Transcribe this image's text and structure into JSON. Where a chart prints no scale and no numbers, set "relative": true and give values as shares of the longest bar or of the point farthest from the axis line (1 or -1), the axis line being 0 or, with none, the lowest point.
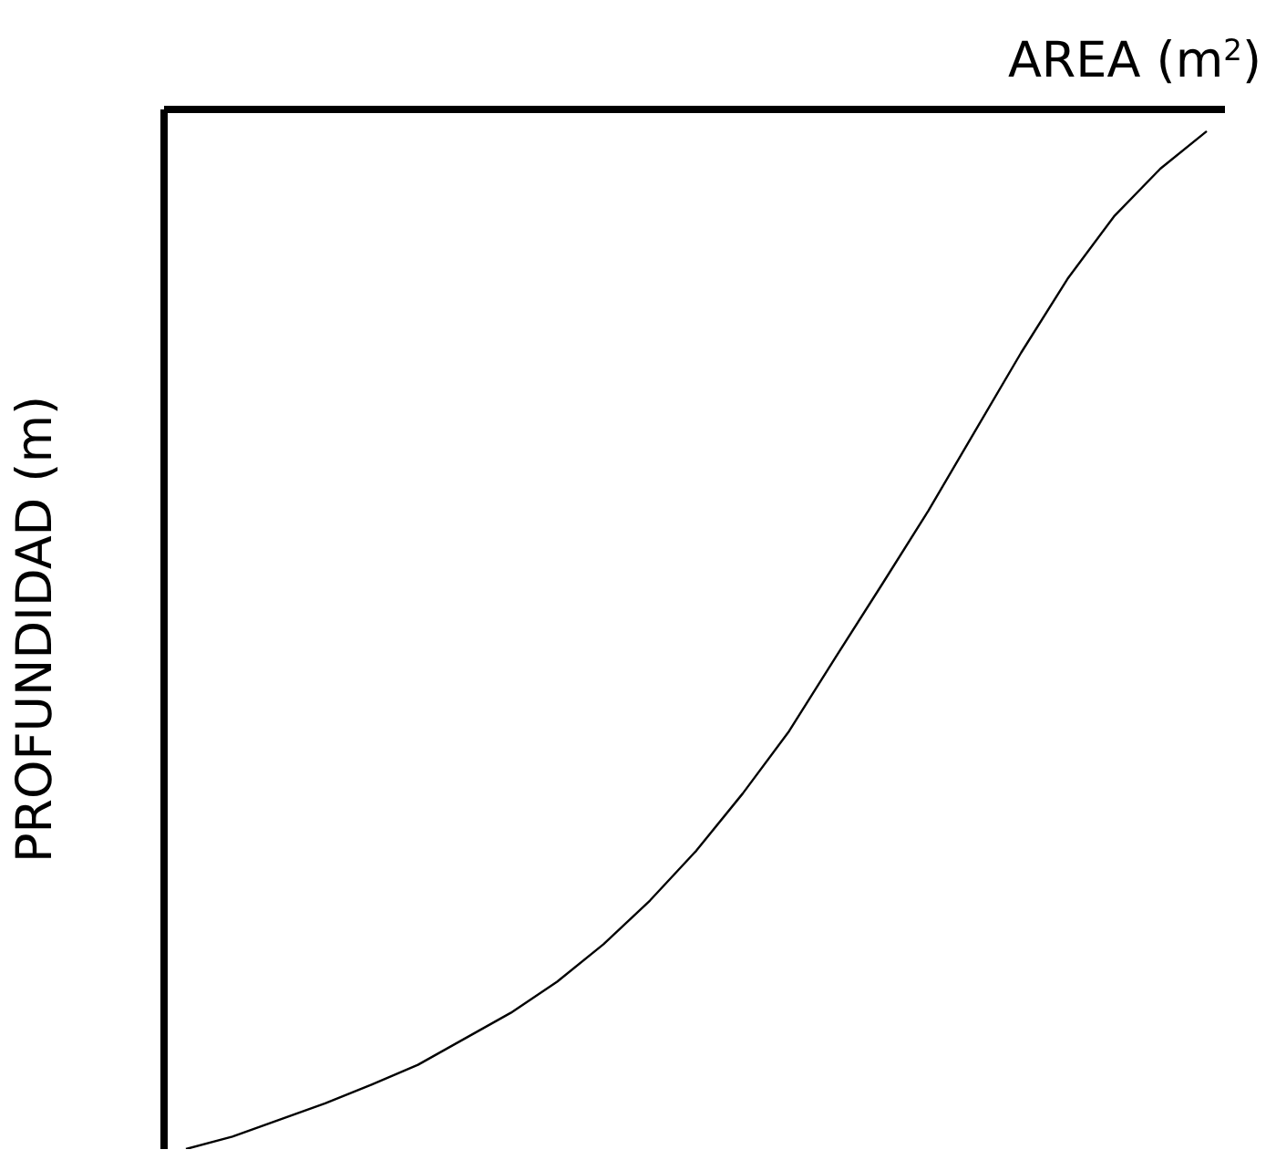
{
  "chart_data": {
    "type": "line",
    "xlabel": "AREA (m$^{2}$)",
    "ylabel": "PROFUNDIDAD (m)",
    "relative": true,
    "marker": "none",
    "categories": [
      null,
      null,
      null,
      null,
      null,
      null,
      null,
      null,
      null,
      null,
      null,
      null,
      null,
      null,
      null,
      null,
      null,
      null,
      null,
      null,
      null,
      null,
      null
    ],
    "series": [
      {
        "color": "#000000",
        "values": [
          -1,
          -0.988,
          -0.972,
          -0.956,
          -0.938,
          -0.919,
          -0.894,
          -0.869,
          -0.839,
          -0.803,
          -0.761,
          -0.713,
          -0.658,
          -0.598,
          -0.527,
          -0.457,
          -0.386,
          -0.31,
          -0.234,
          -0.163,
          -0.103,
          -0.057,
          -0.021
        ]
      }
    ]
  }
}
